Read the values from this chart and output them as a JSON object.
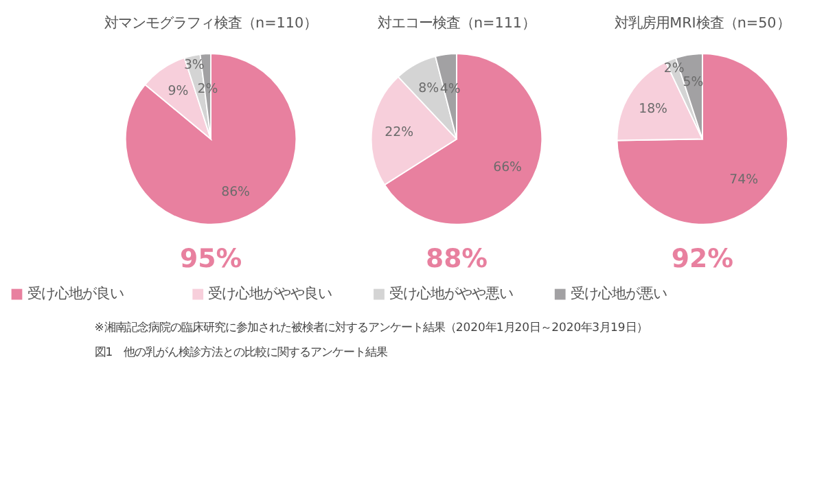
{
  "chart_data": [
    {
      "type": "pie",
      "title": "対マンモグラフィ検査（n=110）",
      "categories": [
        "受け心地が良い",
        "受け心地がやや良い",
        "受け心地がやや悪い",
        "受け心地が悪い"
      ],
      "values": [
        86,
        9,
        3,
        2
      ],
      "value_labels": [
        "86%",
        "9%",
        "3%",
        "2%"
      ],
      "colors": [
        "#e8809f",
        "#f7cfdb",
        "#d4d4d4",
        "#a2a1a3"
      ],
      "legend": "bottom",
      "annotations": [
        "95%"
      ]
    },
    {
      "type": "pie",
      "title": "対エコー検査（n=111）",
      "categories": [
        null,
        null,
        null,
        null
      ],
      "values": [
        66,
        22,
        8,
        4
      ],
      "value_labels": [
        "66%",
        "22%",
        "8%",
        "4%"
      ],
      "colors": [
        "#e8809f",
        "#f7cfdb",
        "#d4d4d4",
        "#a2a1a3"
      ],
      "annotations": [
        "88%"
      ]
    },
    {
      "type": "pie",
      "title": "対乳房用MRI検査（n=50）",
      "categories": [
        null,
        null,
        null,
        null
      ],
      "values": [
        74,
        18,
        2,
        5
      ],
      "value_labels": [
        "74%",
        "18%",
        "2%",
        "5%"
      ],
      "colors": [
        "#e8809f",
        "#f7cfdb",
        "#d4d4d4",
        "#a2a1a3"
      ],
      "annotations": [
        "92%",
        "※湘南記念病院の臨床研究に参加された被検者に対するアンケート結果（2020年1月20日～2020年3月19日）",
        "図1　他の乳がん検診方法との比較に関するアンケート結果"
      ]
    }
  ]
}
